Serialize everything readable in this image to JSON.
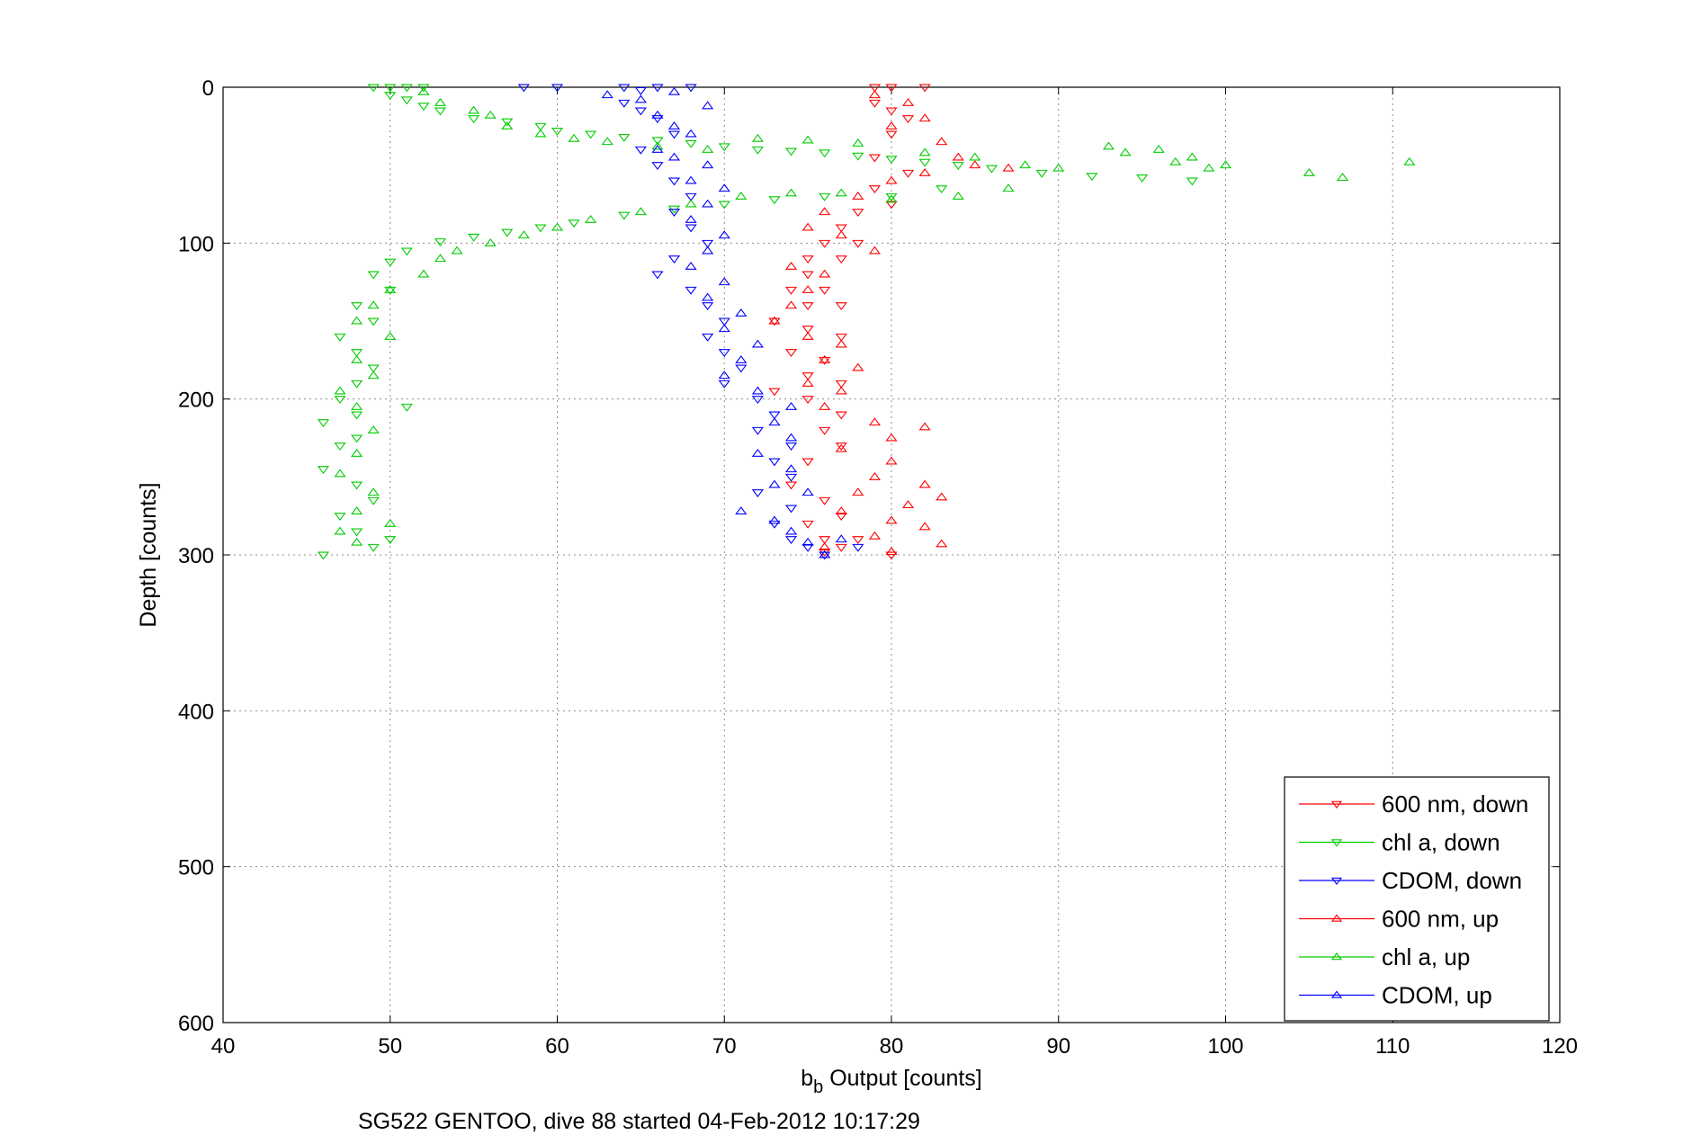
{
  "chart_data": {
    "type": "scatter",
    "xlabel_base": "b",
    "xlabel_sub": "b",
    "xlabel_rest": " Output [counts]",
    "ylabel": "Depth [counts]",
    "caption": "SG522 GENTOO, dive 88 started 04-Feb-2012 10:17:29",
    "xlim": [
      40,
      120
    ],
    "ylim": [
      0,
      600
    ],
    "y_reversed": true,
    "grid": true,
    "legend_position": "bottom-right",
    "xticks": [
      "40",
      "50",
      "60",
      "70",
      "80",
      "90",
      "100",
      "110",
      "120"
    ],
    "yticks": [
      "0",
      "100",
      "200",
      "300",
      "400",
      "500",
      "600"
    ],
    "series": [
      {
        "name": "600 nm, down",
        "marker": "triangle-down",
        "color": "#ff0000",
        "points": [
          [
            79,
            0
          ],
          [
            80,
            0
          ],
          [
            82,
            0
          ],
          [
            79,
            10
          ],
          [
            80,
            15
          ],
          [
            81,
            20
          ],
          [
            80,
            30
          ],
          [
            79,
            45
          ],
          [
            81,
            55
          ],
          [
            79,
            65
          ],
          [
            80,
            75
          ],
          [
            78,
            80
          ],
          [
            77,
            90
          ],
          [
            76,
            100
          ],
          [
            78,
            100
          ],
          [
            75,
            110
          ],
          [
            77,
            110
          ],
          [
            75,
            120
          ],
          [
            74,
            130
          ],
          [
            76,
            130
          ],
          [
            75,
            140
          ],
          [
            77,
            140
          ],
          [
            73,
            150
          ],
          [
            75,
            155
          ],
          [
            77,
            160
          ],
          [
            74,
            170
          ],
          [
            76,
            175
          ],
          [
            75,
            185
          ],
          [
            77,
            190
          ],
          [
            73,
            195
          ],
          [
            75,
            200
          ],
          [
            77,
            210
          ],
          [
            76,
            220
          ],
          [
            77,
            230
          ],
          [
            75,
            240
          ],
          [
            74,
            255
          ],
          [
            76,
            265
          ],
          [
            77,
            275
          ],
          [
            75,
            280
          ],
          [
            76,
            290
          ],
          [
            78,
            290
          ],
          [
            80,
            300
          ],
          [
            76,
            298
          ],
          [
            77,
            295
          ]
        ]
      },
      {
        "name": "chl a, down",
        "marker": "triangle-down",
        "color": "#00cc00",
        "points": [
          [
            49,
            0
          ],
          [
            50,
            0
          ],
          [
            51,
            0
          ],
          [
            52,
            0
          ],
          [
            50,
            5
          ],
          [
            51,
            8
          ],
          [
            52,
            12
          ],
          [
            53,
            15
          ],
          [
            55,
            20
          ],
          [
            57,
            22
          ],
          [
            59,
            25
          ],
          [
            60,
            28
          ],
          [
            62,
            30
          ],
          [
            64,
            32
          ],
          [
            66,
            34
          ],
          [
            68,
            36
          ],
          [
            70,
            38
          ],
          [
            72,
            40
          ],
          [
            74,
            41
          ],
          [
            76,
            42
          ],
          [
            78,
            44
          ],
          [
            80,
            46
          ],
          [
            82,
            48
          ],
          [
            84,
            50
          ],
          [
            86,
            52
          ],
          [
            89,
            55
          ],
          [
            92,
            57
          ],
          [
            95,
            58
          ],
          [
            98,
            60
          ],
          [
            83,
            65
          ],
          [
            80,
            70
          ],
          [
            76,
            70
          ],
          [
            73,
            72
          ],
          [
            70,
            75
          ],
          [
            67,
            78
          ],
          [
            64,
            82
          ],
          [
            61,
            87
          ],
          [
            59,
            90
          ],
          [
            57,
            93
          ],
          [
            55,
            96
          ],
          [
            53,
            99
          ],
          [
            51,
            105
          ],
          [
            50,
            112
          ],
          [
            49,
            120
          ],
          [
            50,
            130
          ],
          [
            48,
            140
          ],
          [
            49,
            150
          ],
          [
            47,
            160
          ],
          [
            48,
            170
          ],
          [
            49,
            180
          ],
          [
            48,
            190
          ],
          [
            47,
            200
          ],
          [
            48,
            210
          ],
          [
            46,
            215
          ],
          [
            48,
            225
          ],
          [
            47,
            230
          ],
          [
            46,
            245
          ],
          [
            48,
            255
          ],
          [
            49,
            265
          ],
          [
            47,
            275
          ],
          [
            48,
            285
          ],
          [
            49,
            295
          ],
          [
            46,
            300
          ],
          [
            50,
            290
          ],
          [
            51,
            205
          ]
        ]
      },
      {
        "name": "CDOM, down",
        "marker": "triangle-down",
        "color": "#0000ff",
        "points": [
          [
            58,
            0
          ],
          [
            60,
            0
          ],
          [
            64,
            0
          ],
          [
            65,
            2
          ],
          [
            66,
            0
          ],
          [
            68,
            0
          ],
          [
            64,
            10
          ],
          [
            65,
            15
          ],
          [
            66,
            20
          ],
          [
            67,
            30
          ],
          [
            65,
            40
          ],
          [
            66,
            50
          ],
          [
            67,
            60
          ],
          [
            68,
            70
          ],
          [
            67,
            80
          ],
          [
            68,
            90
          ],
          [
            69,
            100
          ],
          [
            67,
            110
          ],
          [
            66,
            120
          ],
          [
            68,
            130
          ],
          [
            69,
            140
          ],
          [
            70,
            150
          ],
          [
            69,
            160
          ],
          [
            70,
            170
          ],
          [
            71,
            180
          ],
          [
            70,
            190
          ],
          [
            72,
            200
          ],
          [
            73,
            210
          ],
          [
            72,
            220
          ],
          [
            74,
            230
          ],
          [
            73,
            240
          ],
          [
            74,
            250
          ],
          [
            72,
            260
          ],
          [
            74,
            270
          ],
          [
            73,
            280
          ],
          [
            74,
            290
          ],
          [
            75,
            295
          ],
          [
            76,
            300
          ],
          [
            78,
            295
          ]
        ]
      },
      {
        "name": "600 nm, up",
        "marker": "triangle-up",
        "color": "#ff0000",
        "points": [
          [
            79,
            5
          ],
          [
            81,
            10
          ],
          [
            82,
            20
          ],
          [
            80,
            25
          ],
          [
            83,
            35
          ],
          [
            84,
            45
          ],
          [
            85,
            50
          ],
          [
            87,
            52
          ],
          [
            82,
            55
          ],
          [
            80,
            60
          ],
          [
            78,
            70
          ],
          [
            76,
            80
          ],
          [
            75,
            90
          ],
          [
            77,
            95
          ],
          [
            79,
            105
          ],
          [
            74,
            115
          ],
          [
            76,
            120
          ],
          [
            75,
            130
          ],
          [
            74,
            140
          ],
          [
            73,
            150
          ],
          [
            75,
            160
          ],
          [
            77,
            165
          ],
          [
            76,
            175
          ],
          [
            78,
            180
          ],
          [
            75,
            190
          ],
          [
            77,
            195
          ],
          [
            76,
            205
          ],
          [
            79,
            215
          ],
          [
            82,
            218
          ],
          [
            80,
            225
          ],
          [
            77,
            232
          ],
          [
            80,
            240
          ],
          [
            79,
            250
          ],
          [
            82,
            255
          ],
          [
            78,
            260
          ],
          [
            83,
            263
          ],
          [
            81,
            268
          ],
          [
            77,
            272
          ],
          [
            80,
            278
          ],
          [
            82,
            282
          ],
          [
            79,
            288
          ],
          [
            83,
            293
          ],
          [
            76,
            295
          ],
          [
            80,
            298
          ]
        ]
      },
      {
        "name": "chl a, up",
        "marker": "triangle-up",
        "color": "#00cc00",
        "points": [
          [
            52,
            3
          ],
          [
            53,
            10
          ],
          [
            55,
            15
          ],
          [
            56,
            18
          ],
          [
            57,
            25
          ],
          [
            59,
            30
          ],
          [
            61,
            33
          ],
          [
            63,
            35
          ],
          [
            66,
            38
          ],
          [
            69,
            40
          ],
          [
            72,
            33
          ],
          [
            75,
            34
          ],
          [
            78,
            36
          ],
          [
            82,
            42
          ],
          [
            85,
            45
          ],
          [
            88,
            50
          ],
          [
            90,
            52
          ],
          [
            93,
            38
          ],
          [
            94,
            42
          ],
          [
            96,
            40
          ],
          [
            97,
            48
          ],
          [
            99,
            52
          ],
          [
            100,
            50
          ],
          [
            105,
            55
          ],
          [
            107,
            58
          ],
          [
            111,
            48
          ],
          [
            98,
            45
          ],
          [
            87,
            65
          ],
          [
            84,
            70
          ],
          [
            80,
            72
          ],
          [
            77,
            68
          ],
          [
            74,
            68
          ],
          [
            71,
            70
          ],
          [
            68,
            75
          ],
          [
            65,
            80
          ],
          [
            62,
            85
          ],
          [
            60,
            90
          ],
          [
            58,
            95
          ],
          [
            56,
            100
          ],
          [
            54,
            105
          ],
          [
            53,
            110
          ],
          [
            52,
            120
          ],
          [
            50,
            130
          ],
          [
            49,
            140
          ],
          [
            48,
            150
          ],
          [
            50,
            160
          ],
          [
            48,
            175
          ],
          [
            49,
            185
          ],
          [
            47,
            195
          ],
          [
            48,
            205
          ],
          [
            49,
            220
          ],
          [
            48,
            235
          ],
          [
            47,
            248
          ],
          [
            49,
            260
          ],
          [
            48,
            272
          ],
          [
            47,
            285
          ],
          [
            48,
            292
          ],
          [
            50,
            280
          ]
        ]
      },
      {
        "name": "CDOM, up",
        "marker": "triangle-up",
        "color": "#0000ff",
        "points": [
          [
            63,
            5
          ],
          [
            65,
            8
          ],
          [
            67,
            3
          ],
          [
            69,
            12
          ],
          [
            66,
            18
          ],
          [
            67,
            25
          ],
          [
            68,
            30
          ],
          [
            66,
            40
          ],
          [
            67,
            45
          ],
          [
            69,
            50
          ],
          [
            68,
            60
          ],
          [
            70,
            65
          ],
          [
            69,
            75
          ],
          [
            68,
            85
          ],
          [
            70,
            95
          ],
          [
            69,
            105
          ],
          [
            68,
            115
          ],
          [
            70,
            125
          ],
          [
            69,
            135
          ],
          [
            71,
            145
          ],
          [
            70,
            155
          ],
          [
            72,
            165
          ],
          [
            71,
            175
          ],
          [
            70,
            185
          ],
          [
            72,
            195
          ],
          [
            74,
            205
          ],
          [
            73,
            215
          ],
          [
            74,
            225
          ],
          [
            72,
            235
          ],
          [
            74,
            245
          ],
          [
            73,
            255
          ],
          [
            75,
            260
          ],
          [
            71,
            272
          ],
          [
            73,
            278
          ],
          [
            74,
            285
          ],
          [
            75,
            292
          ],
          [
            76,
            300
          ],
          [
            77,
            290
          ]
        ]
      }
    ]
  }
}
